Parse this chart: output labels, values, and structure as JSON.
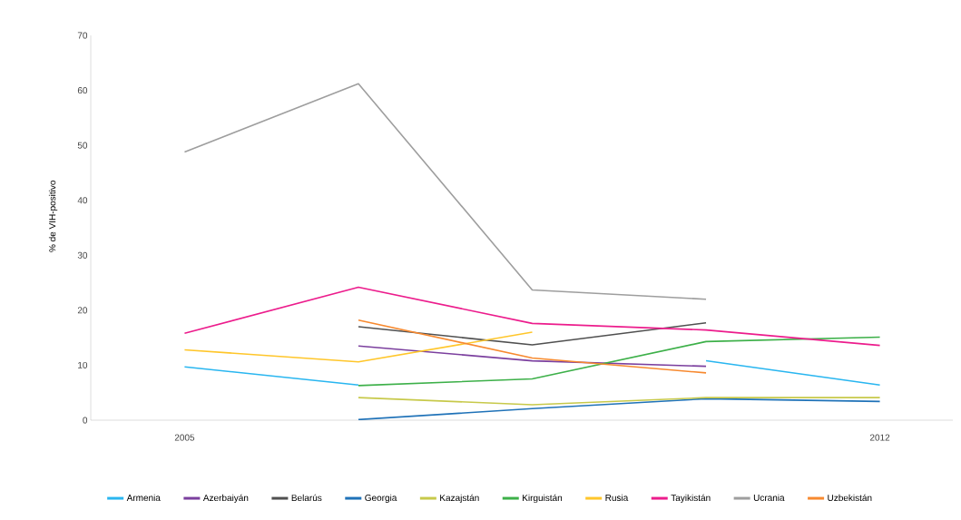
{
  "chart_data": {
    "type": "line",
    "ylabel": "% de VIH-positivo",
    "categories": [
      "2005",
      null,
      null,
      null,
      "2012"
    ],
    "ylim": [
      0,
      70
    ],
    "yticks": [
      0,
      10,
      20,
      30,
      40,
      50,
      60,
      70
    ],
    "legend": "bottom",
    "grid": false,
    "series": [
      {
        "name": "Armenia",
        "color": "#29b6f0",
        "values": [
          9.7,
          6.4,
          null,
          10.8,
          6.4
        ]
      },
      {
        "name": "Azerbaiyán",
        "color": "#7b3f9e",
        "values": [
          null,
          13.5,
          10.8,
          9.8,
          null
        ]
      },
      {
        "name": "Belarús",
        "color": "#505050",
        "values": [
          null,
          17.0,
          13.7,
          17.7,
          null
        ]
      },
      {
        "name": "Georgia",
        "color": "#1f72b8",
        "values": [
          null,
          0.1,
          2.1,
          3.9,
          3.4
        ]
      },
      {
        "name": "Kazajstán",
        "color": "#c7c94a",
        "values": [
          null,
          4.1,
          2.8,
          4.1,
          4.1
        ]
      },
      {
        "name": "Kirguistán",
        "color": "#3db049",
        "values": [
          null,
          6.3,
          7.5,
          14.3,
          15.1
        ]
      },
      {
        "name": "Rusia",
        "color": "#ffc62a",
        "values": [
          12.8,
          10.6,
          16.0,
          null,
          null
        ]
      },
      {
        "name": "Tayikistán",
        "color": "#ec1c8c",
        "values": [
          15.8,
          24.2,
          17.6,
          16.4,
          13.6
        ]
      },
      {
        "name": "Ucrania",
        "color": "#9e9e9e",
        "values": [
          48.8,
          61.2,
          23.7,
          22.0,
          null
        ]
      },
      {
        "name": "Uzbekistán",
        "color": "#f7892f",
        "values": [
          null,
          18.2,
          11.3,
          8.6,
          null
        ]
      }
    ]
  }
}
